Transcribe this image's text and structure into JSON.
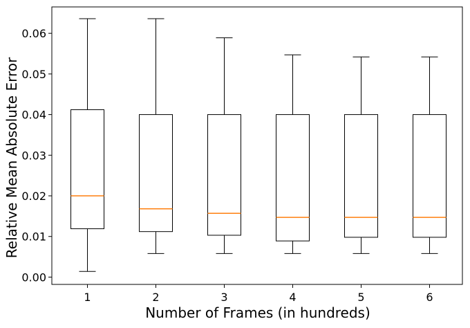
{
  "chart_data": {
    "type": "box",
    "xlabel": "Number of Frames (in hundreds)",
    "ylabel": "Relative Mean Absolute Error",
    "categories": [
      "1",
      "2",
      "3",
      "4",
      "5",
      "6"
    ],
    "ylim": [
      -0.0018,
      0.0665
    ],
    "yticks": [
      "0.00",
      "0.01",
      "0.02",
      "0.03",
      "0.04",
      "0.05",
      "0.06"
    ],
    "grid": false,
    "boxes": [
      {
        "label": "1",
        "whisker_low": 0.0014,
        "q1": 0.0119,
        "median": 0.02,
        "q3": 0.0412,
        "whisker_high": 0.0636
      },
      {
        "label": "2",
        "whisker_low": 0.0058,
        "q1": 0.0112,
        "median": 0.0168,
        "q3": 0.04,
        "whisker_high": 0.0636
      },
      {
        "label": "3",
        "whisker_low": 0.0058,
        "q1": 0.0103,
        "median": 0.0157,
        "q3": 0.04,
        "whisker_high": 0.0589
      },
      {
        "label": "4",
        "whisker_low": 0.0058,
        "q1": 0.0089,
        "median": 0.0147,
        "q3": 0.04,
        "whisker_high": 0.0547
      },
      {
        "label": "5",
        "whisker_low": 0.0058,
        "q1": 0.0098,
        "median": 0.0147,
        "q3": 0.04,
        "whisker_high": 0.0542
      },
      {
        "label": "6",
        "whisker_low": 0.0058,
        "q1": 0.0098,
        "median": 0.0147,
        "q3": 0.04,
        "whisker_high": 0.0542
      }
    ],
    "colors": {
      "box": "#000000",
      "median": "#ff7f0e"
    }
  }
}
